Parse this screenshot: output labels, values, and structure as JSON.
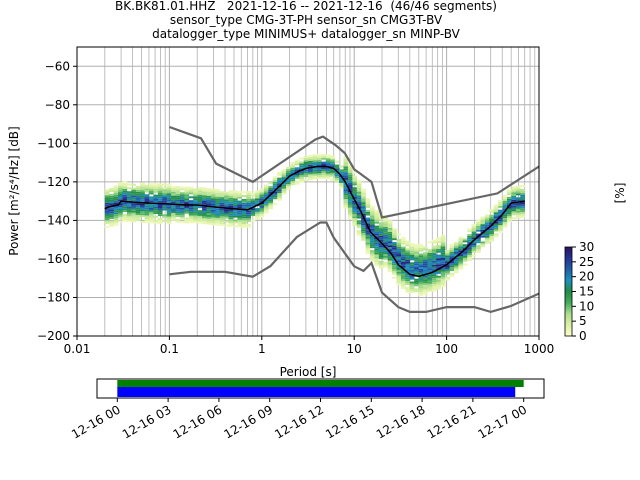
{
  "title_lines": [
    "BK.BK81.01.HHZ   2021-12-16 -- 2021-12-16  (46/46 segments)",
    "sensor_type CMG-3T-PH sensor_sn CMG3T-BV",
    "datalogger_type MINIMUS+ datalogger_sn MINP-BV"
  ],
  "chart_data": {
    "type": "heatmap",
    "xlabel": "Period [s]",
    "ylabel": "Power [m²/s⁴/Hz] [dB]",
    "xscale": "log",
    "xlim": [
      0.01,
      1000
    ],
    "ylim": [
      -200,
      -50
    ],
    "xticks": [
      0.01,
      0.1,
      1,
      10,
      100,
      1000
    ],
    "xtick_labels": [
      "0.01",
      "0.1",
      "1",
      "10",
      "100",
      "1000"
    ],
    "yticks": [
      -200,
      -180,
      -160,
      -140,
      -120,
      -100,
      -80,
      -60
    ],
    "ytick_labels": [
      "−200",
      "−180",
      "−160",
      "−140",
      "−120",
      "−100",
      "−80",
      "−60"
    ],
    "grid": true,
    "colorbar": {
      "label": "[%]",
      "ticks": [
        0,
        5,
        10,
        15,
        20,
        25,
        30
      ],
      "range": [
        0,
        30
      ],
      "colors": [
        "#ffffcc",
        "#d9f0a3",
        "#addd8e",
        "#41ab5d",
        "#238b45",
        "#1d91c0",
        "#225ea8",
        "#253494",
        "#2c1160"
      ]
    },
    "mode_curve": {
      "name": "mode",
      "color": "#000000",
      "x": [
        0.02,
        0.022,
        0.025,
        0.028,
        0.03,
        0.04,
        0.06,
        0.1,
        0.15,
        0.2,
        0.3,
        0.5,
        0.7,
        1.0,
        1.5,
        2.0,
        2.5,
        3.0,
        4.0,
        5.0,
        6.0,
        7.0,
        8.0,
        10.0,
        12.0,
        15.0,
        20.0,
        25.0,
        30.0,
        40.0,
        50.0,
        70.0,
        100.0,
        150.0,
        200.0,
        300.0,
        400.0,
        500.0,
        700.0
      ],
      "y": [
        -134,
        -133,
        -132.5,
        -132,
        -130,
        -130.5,
        -131,
        -131.5,
        -132,
        -132,
        -133,
        -134,
        -134.5,
        -131,
        -123,
        -117,
        -114.5,
        -113,
        -112,
        -112,
        -113,
        -116,
        -120,
        -129,
        -136,
        -146,
        -152,
        -157,
        -163,
        -168,
        -169,
        -167,
        -163,
        -156,
        -150,
        -143,
        -137,
        -131,
        -130
      ]
    },
    "noise_models": {
      "color": "#666666",
      "high": {
        "x": [
          0.1,
          0.22,
          0.32,
          0.8,
          3.8,
          4.6,
          6.3,
          7.9,
          10.0,
          15.4,
          20.0,
          354.8,
          1000.0
        ],
        "y": [
          -91.5,
          -97.4,
          -110.5,
          -120.0,
          -98.0,
          -96.5,
          -101.0,
          -105.0,
          -113.5,
          -120.0,
          -138.5,
          -126.0,
          -112.0
        ]
      },
      "low": {
        "x": [
          0.1,
          0.17,
          0.4,
          0.8,
          1.24,
          2.4,
          4.3,
          5.0,
          6.0,
          10.0,
          12.6,
          15.4,
          20.0,
          30.0,
          40.0,
          60.0,
          100.0,
          138.0,
          200.0,
          300.0,
          500.0,
          1000.0
        ],
        "y": [
          -168.0,
          -166.7,
          -166.7,
          -169.2,
          -163.7,
          -148.6,
          -141.1,
          -141.1,
          -149.0,
          -163.8,
          -166.2,
          -162.1,
          -177.5,
          -185.0,
          -187.5,
          -187.5,
          -185.0,
          -185.0,
          -185.0,
          -187.5,
          -184.4,
          -178.0
        ]
      }
    },
    "density_bands": [
      {
        "x": [
          0.02,
          0.07
        ],
        "y": [
          -140,
          -121
        ],
        "level": 5
      },
      {
        "x": [
          0.07,
          0.8
        ],
        "y": [
          -141,
          -125
        ],
        "level": 6
      },
      {
        "x": [
          0.8,
          1.6
        ],
        "y": [
          -138,
          -120
        ],
        "level": 10
      },
      {
        "x": [
          1.6,
          8.0
        ],
        "y": [
          -124,
          -110
        ],
        "level": 14
      },
      {
        "x": [
          8.0,
          20.0
        ],
        "y": [
          -160,
          -125
        ],
        "level": 10
      },
      {
        "x": [
          20.0,
          100.0
        ],
        "y": [
          -180,
          -140
        ],
        "level": 6
      },
      {
        "x": [
          100.0,
          700.0
        ],
        "y": [
          -165,
          -125
        ],
        "level": 8
      }
    ]
  },
  "timeline": {
    "ticks": [
      "12-16 00",
      "12-16 03",
      "12-16 06",
      "12-16 09",
      "12-16 12",
      "12-16 15",
      "12-16 18",
      "12-16 21",
      "12-17 00"
    ],
    "tick_hours": [
      0,
      3,
      6,
      9,
      12,
      15,
      18,
      21,
      24
    ],
    "range_hours": [
      -1.2,
      25.2
    ],
    "bars": [
      {
        "name": "data-coverage",
        "color": "#008000",
        "start_hours": 0,
        "end_hours": 24.0
      },
      {
        "name": "processed-segments",
        "color": "#0000ff",
        "start_hours": 0,
        "end_hours": 23.5
      }
    ]
  }
}
